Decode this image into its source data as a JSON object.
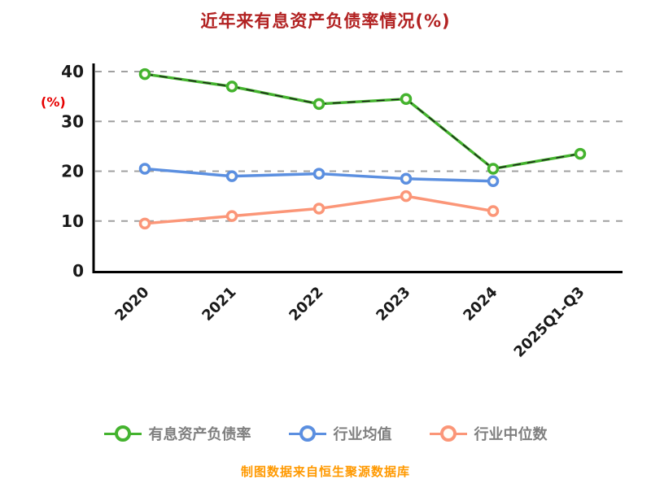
{
  "chart_data": {
    "type": "line",
    "title": "近年来有息资产负债率情况(%)",
    "ylabel": "(%)",
    "categories": [
      "2020",
      "2021",
      "2022",
      "2023",
      "2024",
      "2025Q1-Q3"
    ],
    "series": [
      {
        "name": "有息资产负债率",
        "color": "#44b32e",
        "values": [
          39.5,
          37.0,
          33.5,
          34.5,
          20.5,
          23.5
        ],
        "dashed_overlay": true
      },
      {
        "name": "行业均值",
        "color": "#5b8fe0",
        "values": [
          20.5,
          19.0,
          19.5,
          18.5,
          18.0,
          null
        ]
      },
      {
        "name": "行业中位数",
        "color": "#fb9678",
        "values": [
          9.5,
          11.0,
          12.5,
          15.0,
          12.0,
          null
        ]
      }
    ],
    "ylim": [
      0,
      40
    ],
    "yticks": [
      0,
      10,
      20,
      30,
      40
    ],
    "grid": "horizontal-dashed",
    "legend_position": "bottom"
  },
  "footer": "制图数据来自恒生聚源数据库",
  "colors": {
    "title": "#b22222",
    "ylabel": "#e60000",
    "footer": "#ff9900",
    "legend_text": "#7f7f7f",
    "grid": "#a0a0a0",
    "axis": "#000000",
    "tick_text": "#1a1a1a"
  }
}
